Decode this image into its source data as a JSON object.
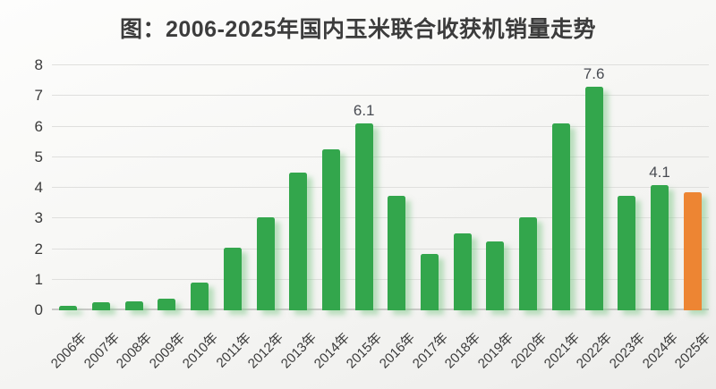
{
  "title": "图：2006-2025年国内玉米联合收获机销量走势",
  "chart_data": {
    "type": "bar",
    "title": "图：2006-2025年国内玉米联合收获机销量走势",
    "categories": [
      "2006年",
      "2007年",
      "2008年",
      "2009年",
      "2010年",
      "2011年",
      "2012年",
      "2013年",
      "2014年",
      "2015年",
      "2016年",
      "2017年",
      "2018年",
      "2019年",
      "2020年",
      "2021年",
      "2022年",
      "2023年",
      "2024年",
      "2025年"
    ],
    "values": [
      0.15,
      0.25,
      0.3,
      0.38,
      0.9,
      2.05,
      3.05,
      4.5,
      5.25,
      6.1,
      3.75,
      1.85,
      2.5,
      2.25,
      3.05,
      6.1,
      7.6,
      3.75,
      4.1,
      3.85
    ],
    "data_labels": [
      "",
      "",
      "",
      "",
      "",
      "",
      "",
      "",
      "",
      "6.1",
      "",
      "",
      "",
      "",
      "",
      "",
      "7.6",
      "",
      "4.1",
      ""
    ],
    "highlight_index": 19,
    "xlabel": "",
    "ylabel": "",
    "ylim": [
      0,
      8
    ],
    "yticks": [
      0,
      1,
      2,
      3,
      4,
      5,
      6,
      7,
      8
    ],
    "grid": true,
    "legend": "none",
    "colors": {
      "bar": "#33A64C",
      "highlight": "#ED8533",
      "gridline": "#dfdfdd",
      "baseline": "#c9c9c7",
      "title_text": "#3c3c3c",
      "axis_text": "#3a3a3a",
      "label_text": "#484b52"
    }
  }
}
